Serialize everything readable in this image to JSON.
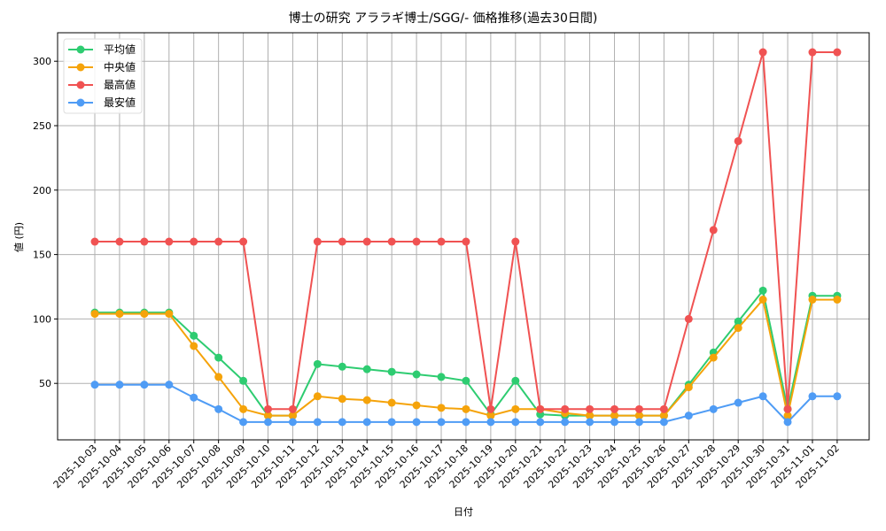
{
  "chart_data": {
    "type": "line",
    "title": "博士の研究 アララギ博士/SGG/- 価格推移(過去30日間)",
    "xlabel": "日付",
    "ylabel": "値 (円)",
    "ylim": [
      9,
      322
    ],
    "yticks": [
      50,
      100,
      150,
      200,
      250,
      300
    ],
    "grid": true,
    "legend_position": "upper left",
    "categories": [
      "2025-10-03",
      "2025-10-04",
      "2025-10-05",
      "2025-10-06",
      "2025-10-07",
      "2025-10-08",
      "2025-10-09",
      "2025-10-10",
      "2025-10-11",
      "2025-10-12",
      "2025-10-13",
      "2025-10-14",
      "2025-10-15",
      "2025-10-16",
      "2025-10-17",
      "2025-10-18",
      "2025-10-19",
      "2025-10-20",
      "2025-10-21",
      "2025-10-22",
      "2025-10-23",
      "2025-10-24",
      "2025-10-25",
      "2025-10-26",
      "2025-10-27",
      "2025-10-28",
      "2025-10-29",
      "2025-10-30",
      "2025-10-31",
      "2025-11-01",
      "2025-11-02"
    ],
    "series": [
      {
        "name": "平均値",
        "color": "#2ecc71",
        "values": [
          105,
          105,
          105,
          105,
          87,
          70,
          52,
          25,
          25,
          65,
          63,
          61,
          59,
          57,
          55,
          52,
          26,
          52,
          26,
          25,
          25,
          25,
          25,
          25,
          49,
          74,
          98,
          122,
          30,
          118,
          118
        ]
      },
      {
        "name": "中央値",
        "color": "#f5a30a",
        "values": [
          104,
          104,
          104,
          104,
          79,
          55,
          30,
          25,
          25,
          40,
          38,
          37,
          35,
          33,
          31,
          30,
          25,
          30,
          30,
          27,
          25,
          25,
          25,
          25,
          47,
          70,
          93,
          115,
          25,
          115,
          115
        ]
      },
      {
        "name": "最高値",
        "color": "#f05252",
        "values": [
          160,
          160,
          160,
          160,
          160,
          160,
          160,
          30,
          30,
          160,
          160,
          160,
          160,
          160,
          160,
          160,
          30,
          160,
          30,
          30,
          30,
          30,
          30,
          30,
          100,
          169,
          238,
          307,
          30,
          307,
          307
        ]
      },
      {
        "name": "最安値",
        "color": "#4f9cf5",
        "values": [
          49,
          49,
          49,
          49,
          39,
          30,
          20,
          20,
          20,
          20,
          20,
          20,
          20,
          20,
          20,
          20,
          20,
          20,
          20,
          20,
          20,
          20,
          20,
          20,
          25,
          30,
          35,
          40,
          20,
          40,
          40
        ]
      }
    ]
  }
}
